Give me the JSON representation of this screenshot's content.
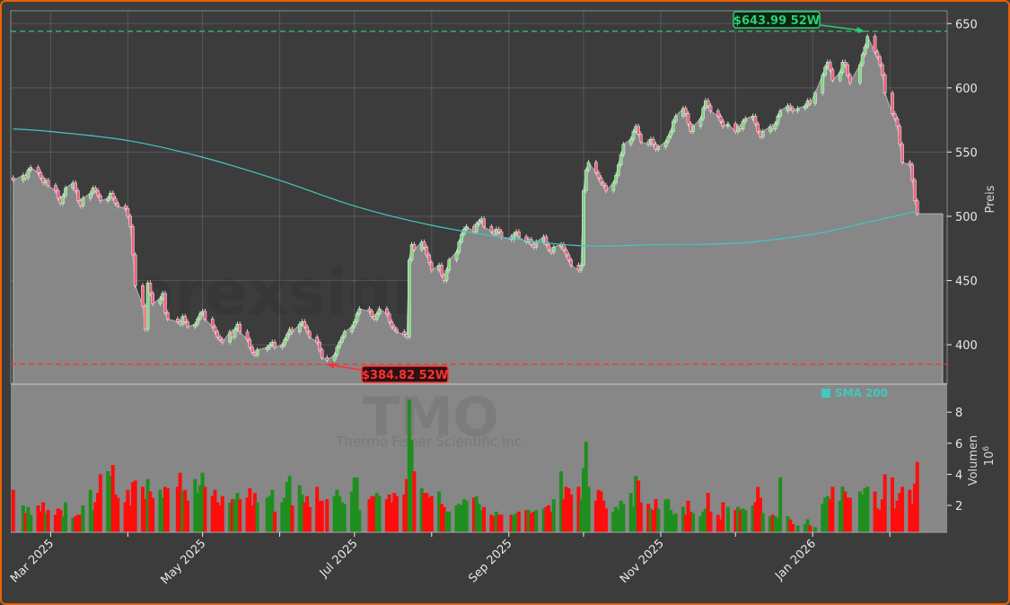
{
  "chart_data": {
    "type": "candlestick",
    "ticker": "TMO",
    "company": "Thermo Fisher Scientific Inc.",
    "watermark": "forexsignale.trade",
    "price_axis": {
      "label": "Preis",
      "ticks": [
        400,
        450,
        500,
        550,
        600,
        650
      ],
      "ylim": [
        370,
        660
      ]
    },
    "volume_axis": {
      "label": "Volumen",
      "unit": "10^6",
      "unit_base": "10",
      "unit_exp": "6",
      "ticks": [
        2,
        4,
        6,
        8
      ],
      "ylim": [
        0.27,
        9.8
      ]
    },
    "x_axis": {
      "xlim": [
        "2025-02-13",
        "2026-02-24"
      ],
      "ticks": [
        "2025-03-01",
        "2025-04-01",
        "2025-05-01",
        "2025-06-01",
        "2025-07-01",
        "2025-08-01",
        "2025-09-01",
        "2025-10-01",
        "2025-11-01",
        "2025-12-01",
        "2026-01-01",
        "2026-02-01"
      ],
      "labels": [
        {
          "date": "2025-03-01",
          "text": "Mar 2025"
        },
        {
          "date": "2025-05-01",
          "text": "May 2025"
        },
        {
          "date": "2025-07-01",
          "text": "Jul 2025"
        },
        {
          "date": "2025-09-01",
          "text": "Sep 2025"
        },
        {
          "date": "2025-11-01",
          "text": "Nov 2025"
        },
        {
          "date": "2026-01-01",
          "text": "Jan 2026"
        }
      ]
    },
    "grid": true,
    "legend": {
      "placement": "top-right of volume panel",
      "entries": [
        {
          "name": "SMA 200",
          "color": "#3fc9c0"
        }
      ]
    },
    "colors": {
      "up": "#7ed87e",
      "down": "#f0607f",
      "volume_up": "#1e8f1e",
      "volume_down": "#ff0d0d",
      "sma": "#3fc9c0",
      "high": "#2ecc71",
      "low": "#ff3030",
      "fill": "#878787",
      "background": "#3c3c3c"
    },
    "annotations": {
      "high": {
        "value": 643.99,
        "date": "2026-01-22",
        "label": "$643.99 52W"
      },
      "low": {
        "value": 384.82,
        "date": "2025-06-20",
        "label": "$384.82 52W"
      }
    },
    "months": [
      {
        "m": "2025-02",
        "days": [
          14,
          18,
          19,
          20,
          21,
          24,
          25,
          26,
          27,
          28
        ],
        "close": [
          528,
          532,
          530,
          536,
          538,
          534,
          530,
          526,
          528,
          524
        ],
        "volume": [
          3.0,
          2.0,
          1.5,
          1.9,
          1.4,
          2.0,
          1.6,
          2.2,
          1.5,
          1.7
        ]
      },
      {
        "m": "2025-03",
        "days": [
          3,
          4,
          5,
          6,
          7,
          10,
          11,
          12,
          13,
          14,
          17,
          18,
          19,
          20,
          21,
          24,
          25,
          26,
          27,
          28,
          31
        ],
        "close": [
          520,
          514,
          510,
          516,
          522,
          526,
          520,
          512,
          508,
          514,
          518,
          522,
          520,
          516,
          512,
          514,
          518,
          514,
          510,
          508,
          506
        ],
        "volume": [
          1.4,
          1.8,
          1.7,
          1.3,
          2.2,
          1.2,
          1.3,
          1.4,
          1.4,
          2.0,
          3.0,
          1.7,
          2.2,
          2.8,
          4.0,
          4.2,
          3.9,
          4.6,
          2.7,
          2.5,
          2.2
        ]
      },
      {
        "m": "2025-04",
        "days": [
          1,
          2,
          3,
          4,
          7,
          8,
          9,
          10,
          11,
          14,
          15,
          16,
          17,
          21,
          22,
          23,
          24,
          25,
          28,
          29,
          30
        ],
        "close": [
          500,
          492,
          470,
          446,
          430,
          412,
          448,
          440,
          432,
          436,
          440,
          425,
          420,
          418,
          416,
          422,
          418,
          414,
          416,
          420,
          424
        ],
        "volume": [
          3.0,
          2.0,
          3.5,
          3.6,
          3.2,
          2.4,
          3.7,
          2.9,
          2.5,
          3.0,
          2.5,
          3.2,
          3.1,
          3.2,
          4.1,
          2.9,
          3.0,
          2.3,
          3.7,
          2.8,
          3.3
        ]
      },
      {
        "m": "2025-05",
        "days": [
          1,
          2,
          5,
          6,
          7,
          8,
          9,
          12,
          13,
          14,
          15,
          16,
          19,
          20,
          21,
          22,
          23,
          27,
          28,
          29,
          30
        ],
        "close": [
          426,
          420,
          414,
          410,
          406,
          404,
          402,
          410,
          406,
          412,
          416,
          410,
          404,
          398,
          394,
          392,
          396,
          398,
          400,
          402,
          398
        ],
        "volume": [
          4.1,
          3.2,
          2.6,
          3.0,
          2.2,
          2.0,
          2.6,
          2.2,
          2.4,
          2.4,
          2.8,
          2.4,
          2.5,
          3.1,
          2.0,
          2.8,
          2.2,
          2.5,
          2.6,
          3.0,
          1.6
        ]
      },
      {
        "m": "2025-06",
        "days": [
          2,
          3,
          4,
          5,
          6,
          9,
          10,
          11,
          12,
          13,
          16,
          17,
          18,
          20,
          23,
          24,
          25,
          26,
          27,
          30
        ],
        "close": [
          400,
          404,
          408,
          412,
          410,
          416,
          418,
          414,
          410,
          406,
          402,
          396,
          390,
          388,
          392,
          398,
          402,
          406,
          410,
          414
        ],
        "volume": [
          2.2,
          2.5,
          3.5,
          3.9,
          2.0,
          3.3,
          2.7,
          2.2,
          2.6,
          1.9,
          3.2,
          2.3,
          2.3,
          2.4,
          2.6,
          3.0,
          2.6,
          2.2,
          2.1,
          2.9
        ]
      },
      {
        "m": "2025-07",
        "days": [
          1,
          2,
          3,
          7,
          8,
          9,
          10,
          11,
          14,
          15,
          16,
          17,
          18,
          21,
          22,
          23,
          24,
          25,
          28,
          29,
          30,
          31
        ],
        "close": [
          418,
          424,
          428,
          426,
          422,
          420,
          424,
          428,
          424,
          418,
          414,
          412,
          410,
          408,
          406,
          466,
          478,
          474,
          480,
          476,
          470,
          464
        ],
        "volume": [
          3.8,
          3.8,
          1.7,
          2.4,
          2.6,
          2.6,
          2.8,
          2.6,
          2.4,
          2.7,
          2.2,
          2.8,
          2.6,
          2.7,
          3.7,
          8.8,
          6.2,
          4.2,
          3.1,
          2.8,
          2.8,
          2.5
        ]
      },
      {
        "m": "2025-08",
        "days": [
          1,
          4,
          5,
          6,
          7,
          8,
          11,
          12,
          13,
          14,
          15,
          18,
          19,
          20,
          21,
          22,
          25,
          26,
          27,
          28,
          29
        ],
        "close": [
          458,
          462,
          454,
          450,
          458,
          466,
          472,
          480,
          486,
          490,
          492,
          488,
          494,
          496,
          498,
          492,
          488,
          486,
          490,
          488,
          484
        ],
        "volume": [
          2.6,
          2.9,
          2.1,
          1.9,
          1.6,
          1.6,
          2.0,
          2.1,
          2.0,
          2.4,
          2.3,
          2.5,
          2.6,
          2.1,
          1.7,
          1.9,
          1.4,
          1.3,
          1.6,
          1.4,
          1.4
        ]
      },
      {
        "m": "2025-09",
        "days": [
          2,
          3,
          4,
          5,
          8,
          9,
          10,
          11,
          12,
          15,
          16,
          17,
          18,
          19,
          22,
          23,
          24,
          25,
          26,
          29,
          30
        ],
        "close": [
          482,
          486,
          488,
          484,
          480,
          482,
          478,
          476,
          480,
          484,
          478,
          474,
          472,
          476,
          478,
          474,
          470,
          466,
          462,
          458,
          462
        ],
        "volume": [
          1.4,
          1.4,
          1.5,
          1.6,
          1.7,
          1.7,
          1.5,
          1.6,
          1.7,
          1.8,
          1.9,
          2.0,
          1.6,
          2.4,
          4.2,
          2.4,
          3.2,
          3.1,
          2.7,
          3.2,
          2.4
        ]
      },
      {
        "m": "2025-10",
        "days": [
          1,
          2,
          3,
          6,
          7,
          8,
          9,
          10,
          13,
          14,
          15,
          16,
          17,
          20,
          21,
          22,
          23,
          24,
          27,
          28,
          29,
          30,
          31
        ],
        "close": [
          520,
          536,
          542,
          534,
          530,
          526,
          524,
          520,
          526,
          532,
          540,
          548,
          556,
          560,
          566,
          570,
          564,
          558,
          556,
          560,
          556,
          552,
          554
        ],
        "volume": [
          4.4,
          6.1,
          3.2,
          2.3,
          3.0,
          2.9,
          2.3,
          1.8,
          1.6,
          1.9,
          1.7,
          2.3,
          2.1,
          2.8,
          1.9,
          3.9,
          3.6,
          2.2,
          2.1,
          1.8,
          1.7,
          2.4,
          1.8
        ]
      },
      {
        "m": "2025-11",
        "days": [
          3,
          4,
          5,
          6,
          7,
          10,
          11,
          12,
          13,
          14,
          17,
          18,
          19,
          20,
          21,
          24,
          25,
          26,
          28
        ],
        "close": [
          558,
          562,
          566,
          574,
          578,
          584,
          580,
          572,
          566,
          570,
          576,
          584,
          590,
          586,
          582,
          578,
          574,
          570,
          572
        ],
        "volume": [
          2.4,
          2.4,
          1.7,
          1.4,
          1.5,
          1.9,
          1.4,
          2.3,
          1.6,
          1.5,
          1.3,
          1.6,
          1.8,
          2.8,
          1.6,
          1.4,
          1.1,
          2.2,
          1.9
        ]
      },
      {
        "m": "2025-12",
        "days": [
          1,
          2,
          3,
          4,
          5,
          8,
          9,
          10,
          11,
          12,
          15,
          16,
          17,
          18,
          19,
          22,
          23,
          24,
          26,
          29,
          30,
          31
        ],
        "close": [
          566,
          570,
          568,
          574,
          576,
          578,
          572,
          566,
          562,
          566,
          570,
          568,
          572,
          578,
          582,
          586,
          584,
          582,
          584,
          586,
          590,
          588
        ],
        "volume": [
          1.7,
          1.9,
          1.7,
          1.8,
          1.7,
          2.0,
          2.2,
          3.2,
          2.5,
          1.5,
          1.3,
          1.4,
          1.3,
          1.2,
          3.8,
          1.3,
          1.1,
          0.8,
          0.7,
          0.8,
          1.1,
          0.7
        ]
      },
      {
        "m": "2026-01",
        "days": [
          2,
          5,
          6,
          7,
          8,
          9,
          12,
          13,
          14,
          15,
          16,
          20,
          21,
          22,
          23,
          26,
          27,
          28,
          29,
          30
        ],
        "close": [
          596,
          610,
          616,
          620,
          614,
          606,
          612,
          620,
          618,
          610,
          604,
          618,
          626,
          632,
          640,
          628,
          624,
          618,
          610,
          596
        ],
        "volume": [
          0.6,
          2.1,
          2.5,
          2.6,
          2.4,
          3.2,
          2.3,
          3.2,
          2.9,
          2.5,
          2.5,
          2.9,
          2.7,
          3.1,
          3.2,
          2.9,
          1.8,
          1.7,
          2.4,
          4.0
        ]
      },
      {
        "m": "2026-02",
        "days": [
          2,
          3,
          4,
          5,
          6,
          9,
          10,
          11,
          12
        ],
        "close": [
          580,
          576,
          570,
          556,
          542,
          540,
          528,
          512,
          502
        ],
        "volume": [
          3.8,
          1.8,
          2.3,
          2.8,
          3.2,
          3.0,
          2.1,
          3.4,
          4.8
        ]
      }
    ],
    "sma200": [
      {
        "date": "2025-02-14",
        "value": 568
      },
      {
        "date": "2025-03-01",
        "value": 566
      },
      {
        "date": "2025-04-01",
        "value": 559
      },
      {
        "date": "2025-05-01",
        "value": 546
      },
      {
        "date": "2025-06-01",
        "value": 528
      },
      {
        "date": "2025-07-01",
        "value": 508
      },
      {
        "date": "2025-08-01",
        "value": 493
      },
      {
        "date": "2025-09-01",
        "value": 483
      },
      {
        "date": "2025-10-01",
        "value": 477
      },
      {
        "date": "2025-11-01",
        "value": 478
      },
      {
        "date": "2025-12-01",
        "value": 479
      },
      {
        "date": "2026-01-01",
        "value": 486
      },
      {
        "date": "2026-01-20",
        "value": 494
      },
      {
        "date": "2026-02-12",
        "value": 504
      }
    ]
  }
}
